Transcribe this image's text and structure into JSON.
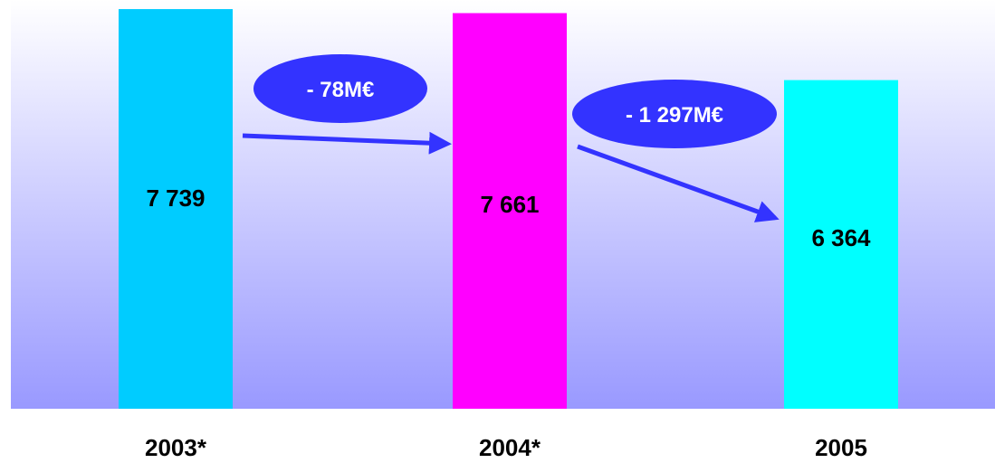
{
  "chart_data": {
    "type": "bar",
    "categories": [
      "2003*",
      "2004*",
      "2005"
    ],
    "values": [
      7739,
      7661,
      6364
    ],
    "value_labels": [
      "7 739",
      "7 661",
      "6 364"
    ],
    "ylim": [
      0,
      7740
    ],
    "grid": false,
    "legend": "none",
    "bar_colors": [
      "#00ccff",
      "#ff00ff",
      "#00ffff"
    ],
    "background_gradient": [
      "#ffffff",
      "#9999ff"
    ],
    "arrow_color": "#3333ff",
    "annotations": [
      {
        "from": "2003*",
        "to": "2004*",
        "text": "- 78M€"
      },
      {
        "from": "2004*",
        "to": "2005",
        "text": "- 1 297M€"
      }
    ]
  }
}
